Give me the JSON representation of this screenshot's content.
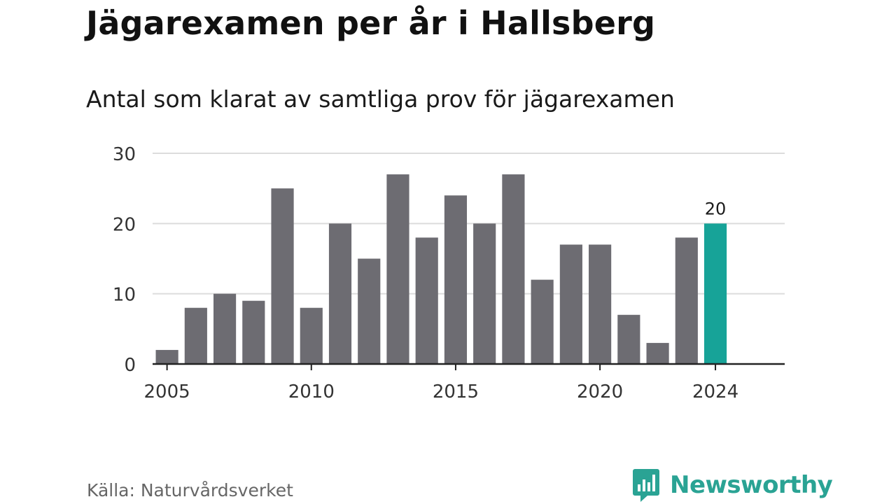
{
  "title": "Jägarexamen per år i Hallsberg",
  "subtitle": "Antal som klarat av samtliga prov för jägarexamen",
  "source": "Källa: Naturvårdsverket",
  "brand": {
    "name": "Newsworthy",
    "icon": "newsworthy-logo-icon"
  },
  "colors": {
    "bar": "#6d6c72",
    "highlight": "#17a398",
    "grid": "#dcdcdc",
    "axis": "#222222",
    "brand": "#2aa394"
  },
  "chart_data": {
    "type": "bar",
    "x": [
      2005,
      2006,
      2007,
      2008,
      2009,
      2010,
      2011,
      2012,
      2013,
      2014,
      2015,
      2016,
      2017,
      2018,
      2019,
      2020,
      2021,
      2022,
      2023,
      2024
    ],
    "values": [
      2,
      8,
      10,
      9,
      25,
      8,
      20,
      15,
      27,
      18,
      24,
      20,
      27,
      12,
      17,
      17,
      7,
      3,
      18,
      20
    ],
    "highlight": {
      "x": 2024,
      "label": "20"
    },
    "ylim": [
      0,
      30
    ],
    "yticks": [
      0,
      10,
      20,
      30
    ],
    "xticks": [
      2005,
      2010,
      2015,
      2020,
      2024
    ],
    "grid": true
  }
}
